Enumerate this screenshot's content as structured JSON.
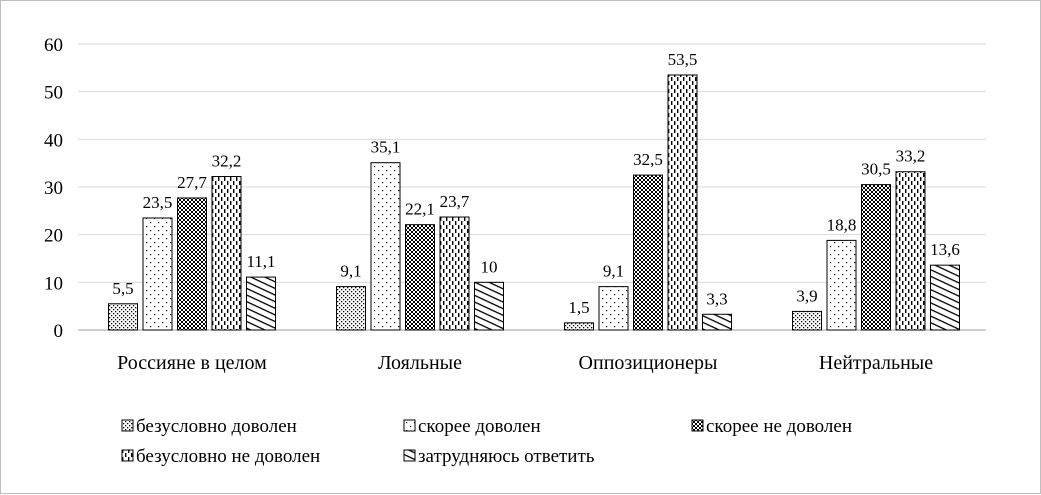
{
  "chart_data": {
    "type": "bar",
    "categories": [
      "Россияне в целом",
      "Лояльные",
      "Оппозиционеры",
      "Нейтральные"
    ],
    "series": [
      {
        "name": "безусловно доволен",
        "values": [
          5.5,
          9.1,
          1.5,
          3.9
        ],
        "labels": [
          "5,5",
          "9,1",
          "1,5",
          "3,9"
        ],
        "pattern": "dots-dense"
      },
      {
        "name": "скорее доволен",
        "values": [
          23.5,
          35.1,
          9.1,
          18.8
        ],
        "labels": [
          "23,5",
          "35,1",
          "9,1",
          "18,8"
        ],
        "pattern": "dots-sparse"
      },
      {
        "name": "скорее не доволен",
        "values": [
          27.7,
          22.1,
          32.5,
          30.5
        ],
        "labels": [
          "27,7",
          "22,1",
          "32,5",
          "30,5"
        ],
        "pattern": "checker"
      },
      {
        "name": "безусловно не доволен",
        "values": [
          32.2,
          23.7,
          53.5,
          33.2
        ],
        "labels": [
          "32,2",
          "23,7",
          "53,5",
          "33,2"
        ],
        "pattern": "dashes-vertical"
      },
      {
        "name": "затрудняюсь ответить",
        "values": [
          11.1,
          10,
          3.3,
          13.6
        ],
        "labels": [
          "11,1",
          "10",
          "3,3",
          "13,6"
        ],
        "pattern": "diagonal"
      }
    ],
    "ylim": [
      0,
      60
    ],
    "yticks": [
      0,
      10,
      20,
      30,
      40,
      50,
      60
    ],
    "grid": true,
    "legend_position": "bottom",
    "title": "",
    "xlabel": "",
    "ylabel": ""
  }
}
